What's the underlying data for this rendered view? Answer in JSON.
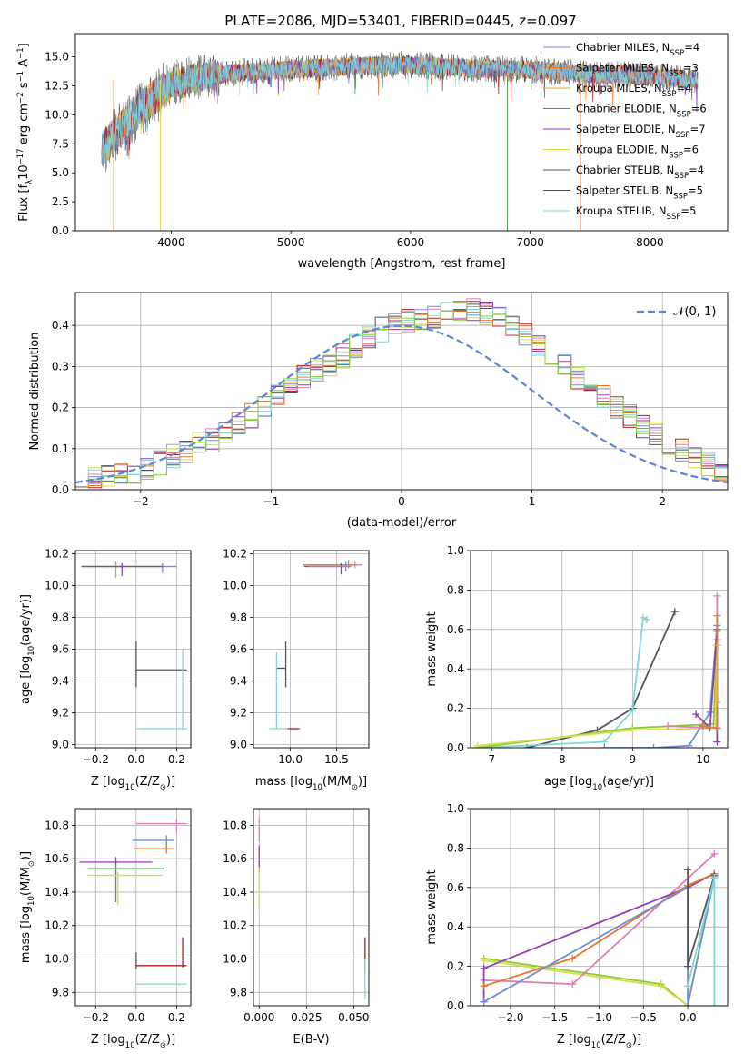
{
  "figure_title": "PLATE=2086, MJD=53401, FIBERID=0445, z=0.097",
  "colors": {
    "Chabrier MILES": "#6f8fd8",
    "Salpeter MILES": "#e8762d",
    "Kroupa MILES": "#f0a030",
    "Chabrier ELODIE": "#4e9a52",
    "Salpeter ELODIE": "#8e3fb0",
    "Kroupa ELODIE": "#d6dc4a",
    "Chabrier STELIB": "#555555",
    "Salpeter STELIB": "#b01e26",
    "Kroupa STELIB": "#7fd6d8",
    "pink": "#e07fb8",
    "lime": "#8acb2f",
    "normal": "#5b87d6"
  },
  "chart_data": [
    {
      "id": "spectrum",
      "type": "line",
      "title": "PLATE=2086, MJD=53401, FIBERID=0445, z=0.097",
      "xlabel": "wavelength [Angstrom, rest frame]",
      "ylabel_main": "Flux [f",
      "ylabel_sub": "λ",
      "ylabel_rest": "10",
      "ylabel_exp1": "−17",
      "ylabel_mid": " erg cm",
      "ylabel_exp2": "−2",
      "ylabel_mid2": " s",
      "ylabel_exp3": "−1",
      "ylabel_mid3": " A",
      "ylabel_exp4": "−1",
      "ylabel_end": "]",
      "xlim": [
        3200,
        8650
      ],
      "ylim": [
        0,
        17
      ],
      "xticks": [
        4000,
        5000,
        6000,
        7000,
        8000
      ],
      "yticks": [
        0.0,
        2.5,
        5.0,
        7.5,
        10.0,
        12.5,
        15.0
      ],
      "ytick_labels": [
        "0.0",
        "2.5",
        "5.0",
        "7.5",
        "10.0",
        "12.5",
        "15.0"
      ],
      "legend": [
        {
          "name": "Chabrier MILES",
          "nssp": "4"
        },
        {
          "name": "Salpeter MILES",
          "nssp": "3"
        },
        {
          "name": "Kroupa MILES",
          "nssp": "4"
        },
        {
          "name": "Chabrier ELODIE",
          "nssp": "6"
        },
        {
          "name": "Salpeter ELODIE",
          "nssp": "7"
        },
        {
          "name": "Kroupa ELODIE",
          "nssp": "6"
        },
        {
          "name": "Chabrier STELIB",
          "nssp": "4"
        },
        {
          "name": "Salpeter STELIB",
          "nssp": "5"
        },
        {
          "name": "Kroupa STELIB",
          "nssp": "5"
        }
      ],
      "legend_label_prefix": ", N",
      "legend_label_sub": "SSP",
      "legend_placement": "right",
      "grid": false,
      "continuum": {
        "x": [
          3400,
          3600,
          3800,
          4000,
          4200,
          4500,
          5000,
          5500,
          6000,
          6500,
          7000,
          7500,
          8000,
          8400
        ],
        "y": [
          6.8,
          9.0,
          11.0,
          12.7,
          13.2,
          13.6,
          13.9,
          14.2,
          14.3,
          14.0,
          13.9,
          13.5,
          13.4,
          13.0
        ]
      },
      "dropouts": [
        {
          "x": 3520,
          "series": "Salpeter MILES"
        },
        {
          "x": 3910,
          "series": "Kroupa ELODIE"
        },
        {
          "x": 6810,
          "series": "Chabrier ELODIE"
        },
        {
          "x": 7420,
          "series": "Salpeter MILES"
        }
      ]
    },
    {
      "id": "residuals",
      "type": "histogram",
      "xlabel": "(data-model)/error",
      "ylabel": "Normed distribution",
      "xlim": [
        -2.5,
        2.5
      ],
      "ylim": [
        0,
        0.48
      ],
      "xticks": [
        -2,
        -1,
        0,
        1,
        2
      ],
      "xtick_labels": [
        "−2",
        "−1",
        "0",
        "1",
        "2"
      ],
      "yticks": [
        0.0,
        0.1,
        0.2,
        0.3,
        0.4
      ],
      "ytick_labels": [
        "0.0",
        "0.1",
        "0.2",
        "0.3",
        "0.4"
      ],
      "grid": true,
      "legend": "𝒩(0, 1)",
      "legend_placement": "top-right",
      "bin_width": 0.1,
      "bins_from": -2.5,
      "base_counts": [
        0.02,
        0.025,
        0.03,
        0.035,
        0.045,
        0.055,
        0.065,
        0.08,
        0.095,
        0.11,
        0.12,
        0.14,
        0.16,
        0.18,
        0.205,
        0.23,
        0.255,
        0.275,
        0.29,
        0.305,
        0.325,
        0.35,
        0.37,
        0.39,
        0.4,
        0.41,
        0.415,
        0.42,
        0.43,
        0.44,
        0.44,
        0.43,
        0.42,
        0.4,
        0.38,
        0.355,
        0.33,
        0.3,
        0.275,
        0.25,
        0.225,
        0.2,
        0.18,
        0.155,
        0.135,
        0.115,
        0.095,
        0.075,
        0.06,
        0.045
      ]
    },
    {
      "id": "age_vs_z",
      "type": "errorbar",
      "xlabel_main": "Z [log",
      "xlabel_sub": "10",
      "xlabel_end": "(Z/Z",
      "xlabel_sun": "⊙",
      "xlabel_close": ")]",
      "ylabel_main": "age  [log",
      "ylabel_sub": "10",
      "ylabel_end": "(age/yr)]",
      "xlim": [
        -0.3,
        0.27
      ],
      "ylim": [
        8.98,
        10.22
      ],
      "xticks": [
        -0.2,
        0.0,
        0.2
      ],
      "xtick_labels": [
        "−0.2",
        "0.0",
        "0.2"
      ],
      "yticks": [
        9.0,
        9.2,
        9.4,
        9.6,
        9.8,
        10.0,
        10.2
      ],
      "ytick_labels": [
        "9.0",
        "9.2",
        "9.4",
        "9.6",
        "9.8",
        "10.0",
        "10.2"
      ],
      "grid": true,
      "points": [
        {
          "x": 0.13,
          "xerr": [
            0.4,
            0.07
          ],
          "y": 10.12,
          "yerr": [
            0.01,
            0.02
          ],
          "c": "pink"
        },
        {
          "x": 0.13,
          "xerr": [
            0.4,
            0.07
          ],
          "y": 10.12,
          "yerr": [
            0.04,
            0.02
          ],
          "c": "Chabrier MILES"
        },
        {
          "x": -0.1,
          "xerr": [
            0.17,
            0.23
          ],
          "y": 10.12,
          "yerr": [
            0.07,
            0.03
          ],
          "c": "lime"
        },
        {
          "x": -0.07,
          "xerr": [
            0.2,
            0.2
          ],
          "y": 10.12,
          "yerr": [
            0.06,
            0.02
          ],
          "c": "Salpeter ELODIE"
        },
        {
          "x": 0.0,
          "xerr": [
            0.0,
            0.25
          ],
          "y": 9.47,
          "yerr": [
            0.11,
            0.18
          ],
          "c": "Chabrier STELIB"
        },
        {
          "x": 0.23,
          "xerr": [
            0.23,
            0.02
          ],
          "y": 9.1,
          "yerr": [
            0.01,
            0.5
          ],
          "c": "Kroupa STELIB"
        }
      ]
    },
    {
      "id": "age_vs_mass",
      "type": "errorbar",
      "xlabel_main": "mass [log",
      "xlabel_sub": "10",
      "xlabel_end": "(M/M",
      "xlabel_sun": "⊙",
      "xlabel_close": ")]",
      "xlim": [
        9.6,
        10.85
      ],
      "ylim": [
        8.98,
        10.22
      ],
      "xticks": [
        10.0,
        10.5
      ],
      "xtick_labels": [
        "10.0",
        "10.5"
      ],
      "yticks": [
        9.0,
        9.2,
        9.4,
        9.6,
        9.8,
        10.0,
        10.2
      ],
      "ytick_labels": [
        "9.0",
        "9.2",
        "9.4",
        "9.6",
        "9.8",
        "10.0",
        "10.2"
      ],
      "grid": true,
      "points": [
        {
          "x": 10.7,
          "xerr": [
            0.55,
            0.08
          ],
          "y": 10.13,
          "yerr": [
            0.02,
            0.02
          ],
          "c": "pink"
        },
        {
          "x": 10.63,
          "xerr": [
            0.5,
            0.1
          ],
          "y": 10.13,
          "yerr": [
            0.02,
            0.03
          ],
          "c": "Salpeter MILES"
        },
        {
          "x": 10.55,
          "xerr": [
            0.4,
            0.06
          ],
          "y": 10.12,
          "yerr": [
            0.05,
            0.02
          ],
          "c": "Salpeter ELODIE"
        },
        {
          "x": 10.6,
          "xerr": [
            0.4,
            0.06
          ],
          "y": 10.12,
          "yerr": [
            0.03,
            0.03
          ],
          "c": "Chabrier MILES"
        },
        {
          "x": 9.96,
          "xerr": [
            0.0,
            0.14
          ],
          "y": 9.1,
          "yerr": [
            0.0,
            0.0
          ],
          "c": "Salpeter STELIB"
        },
        {
          "x": 9.95,
          "xerr": [
            0.1,
            0.0
          ],
          "y": 9.48,
          "yerr": [
            0.12,
            0.17
          ],
          "c": "Chabrier STELIB"
        },
        {
          "x": 9.85,
          "xerr": [
            0.08,
            0.12
          ],
          "y": 9.1,
          "yerr": [
            0.0,
            0.48
          ],
          "c": "Kroupa STELIB"
        }
      ]
    },
    {
      "id": "weight_vs_age",
      "type": "line",
      "xlabel_main": "age  [log",
      "xlabel_sub": "10",
      "xlabel_end": "(age/yr)]",
      "ylabel": "mass weight",
      "xlim": [
        6.7,
        10.35
      ],
      "ylim": [
        0,
        1
      ],
      "xticks": [
        7,
        8,
        9,
        10
      ],
      "xtick_labels": [
        "7",
        "8",
        "9",
        "10"
      ],
      "yticks": [
        0.0,
        0.2,
        0.4,
        0.6,
        0.8,
        1.0
      ],
      "ytick_labels": [
        "0.0",
        "0.2",
        "0.4",
        "0.6",
        "0.8",
        "1.0"
      ],
      "grid": true,
      "series": [
        {
          "c": "Chabrier STELIB",
          "x": [
            7.5,
            8.5,
            9.0,
            9.6
          ],
          "y": [
            0.0,
            0.09,
            0.2,
            0.69
          ]
        },
        {
          "c": "Kroupa STELIB",
          "x": [
            6.8,
            8.6,
            9.0,
            9.15,
            9.2
          ],
          "y": [
            0.0,
            0.03,
            0.19,
            0.66,
            0.65
          ]
        },
        {
          "c": "lime",
          "x": [
            6.8,
            9.0,
            10.15,
            10.2
          ],
          "y": [
            0.0,
            0.1,
            0.12,
            0.59
          ]
        },
        {
          "c": "Kroupa ELODIE",
          "x": [
            6.8,
            9.0,
            10.18,
            10.2
          ],
          "y": [
            0.01,
            0.09,
            0.1,
            0.55
          ]
        },
        {
          "c": "Chabrier MILES",
          "x": [
            8.6,
            9.3,
            9.8,
            10.1,
            10.2
          ],
          "y": [
            0.0,
            0.0,
            0.01,
            0.18,
            0.62
          ]
        },
        {
          "c": "Salpeter ELODIE",
          "x": [
            9.9,
            10.1,
            10.2,
            10.2
          ],
          "y": [
            0.17,
            0.1,
            0.6,
            0.03
          ]
        },
        {
          "c": "pink",
          "x": [
            9.5,
            10.2,
            10.2
          ],
          "y": [
            0.11,
            0.1,
            0.77
          ]
        },
        {
          "c": "Salpeter MILES",
          "x": [
            10.0,
            10.2,
            10.2
          ],
          "y": [
            0.11,
            0.1,
            0.67
          ]
        },
        {
          "c": "Kroupa MILES",
          "x": [
            10.2,
            10.2
          ],
          "y": [
            0.23,
            0.52
          ]
        }
      ]
    },
    {
      "id": "mass_vs_z",
      "type": "errorbar",
      "xlabel_main": "Z [log",
      "xlabel_sub": "10",
      "xlabel_end": "(Z/Z",
      "xlabel_sun": "⊙",
      "xlabel_close": ")]",
      "ylabel_main": "mass [log",
      "ylabel_sub": "10",
      "ylabel_end": "(M/M",
      "ylabel_sun": "⊙",
      "ylabel_close": ")]",
      "xlim": [
        -0.3,
        0.27
      ],
      "ylim": [
        9.72,
        10.9
      ],
      "xticks": [
        -0.2,
        0.0,
        0.2
      ],
      "xtick_labels": [
        "−0.2",
        "0.0",
        "0.2"
      ],
      "yticks": [
        9.8,
        10.0,
        10.2,
        10.4,
        10.6,
        10.8
      ],
      "ytick_labels": [
        "9.8",
        "10.0",
        "10.2",
        "10.4",
        "10.6",
        "10.8"
      ],
      "grid": true,
      "points": [
        {
          "x": 0.2,
          "xerr": [
            0.2,
            0.05
          ],
          "y": 10.81,
          "yerr": [
            0.06,
            0.03
          ],
          "c": "pink"
        },
        {
          "x": 0.15,
          "xerr": [
            0.17,
            0.04
          ],
          "y": 10.71,
          "yerr": [
            0.05,
            0.03
          ],
          "c": "Chabrier MILES"
        },
        {
          "x": 0.15,
          "xerr": [
            0.16,
            0.04
          ],
          "y": 10.66,
          "yerr": [
            0.03,
            0.03
          ],
          "c": "Salpeter MILES"
        },
        {
          "x": -0.1,
          "xerr": [
            0.18,
            0.18
          ],
          "y": 10.58,
          "yerr": [
            0.02,
            0.03
          ],
          "c": "Salpeter ELODIE"
        },
        {
          "x": -0.1,
          "xerr": [
            0.14,
            0.24
          ],
          "y": 10.54,
          "yerr": [
            0.2,
            0.02
          ],
          "c": "Chabrier ELODIE"
        },
        {
          "x": -0.09,
          "xerr": [
            0.15,
            0.22
          ],
          "y": 10.5,
          "yerr": [
            0.18,
            0.02
          ],
          "c": "Kroupa ELODIE"
        },
        {
          "x": 0.0,
          "xerr": [
            0.0,
            0.23
          ],
          "y": 9.96,
          "yerr": [
            0.02,
            0.08
          ],
          "c": "Chabrier STELIB"
        },
        {
          "x": 0.23,
          "xerr": [
            0.23,
            0.02
          ],
          "y": 9.96,
          "yerr": [
            0.01,
            0.17
          ],
          "c": "Salpeter STELIB"
        },
        {
          "x": 0.0,
          "xerr": [
            0.0,
            0.25
          ],
          "y": 9.85,
          "yerr": [
            0.0,
            0.0
          ],
          "c": "Kroupa STELIB"
        }
      ]
    },
    {
      "id": "mass_vs_ebv",
      "type": "errorbar",
      "xlabel": "E(B-V)",
      "xlim": [
        -0.003,
        0.058
      ],
      "ylim": [
        9.72,
        10.9
      ],
      "xticks": [
        0.0,
        0.025,
        0.05
      ],
      "xtick_labels": [
        "0.000",
        "0.025",
        "0.050"
      ],
      "yticks": [
        9.8,
        10.0,
        10.2,
        10.4,
        10.6,
        10.8
      ],
      "ytick_labels": [
        "9.8",
        "10.0",
        "10.2",
        "10.4",
        "10.6",
        "10.8"
      ],
      "grid": true,
      "points": [
        {
          "x": 0.0,
          "xerr": [
            0,
            0
          ],
          "y": 10.8,
          "yerr": [
            0.1,
            0.05
          ],
          "c": "pink"
        },
        {
          "x": 0.0,
          "xerr": [
            0,
            0
          ],
          "y": 10.6,
          "yerr": [
            0.08,
            0.08
          ],
          "c": "Salpeter ELODIE"
        },
        {
          "x": 0.0,
          "xerr": [
            0,
            0
          ],
          "y": 10.45,
          "yerr": [
            0.15,
            0.1
          ],
          "c": "Kroupa ELODIE"
        },
        {
          "x": 0.056,
          "xerr": [
            0,
            0
          ],
          "y": 10.02,
          "yerr": [
            0.1,
            0.11
          ],
          "c": "Salpeter STELIB"
        },
        {
          "x": 0.056,
          "xerr": [
            0,
            0
          ],
          "y": 9.88,
          "yerr": [
            0.12,
            0.12
          ],
          "c": "Kroupa STELIB"
        }
      ]
    },
    {
      "id": "weight_vs_z",
      "type": "line",
      "xlabel_main": "Z [log",
      "xlabel_sub": "10",
      "xlabel_end": "(Z/Z",
      "xlabel_sun": "⊙",
      "xlabel_close": ")]",
      "ylabel": "mass weight",
      "xlim": [
        -2.45,
        0.45
      ],
      "ylim": [
        0,
        1
      ],
      "xticks": [
        -2.0,
        -1.5,
        -1.0,
        -0.5,
        0.0
      ],
      "xtick_labels": [
        "−2.0",
        "−1.5",
        "−1.0",
        "−0.5",
        "0.0"
      ],
      "yticks": [
        0.0,
        0.2,
        0.4,
        0.6,
        0.8,
        1.0
      ],
      "ytick_labels": [
        "0.0",
        "0.2",
        "0.4",
        "0.6",
        "0.8",
        "1.0"
      ],
      "grid": true,
      "series": [
        {
          "c": "lime",
          "x": [
            -2.3,
            -0.3,
            0.0,
            0.3
          ],
          "y": [
            0.24,
            0.11,
            0.0,
            0.67
          ]
        },
        {
          "c": "Kroupa ELODIE",
          "x": [
            -2.3,
            -0.3,
            0.0,
            0.3
          ],
          "y": [
            0.23,
            0.1,
            0.0,
            0.66
          ]
        },
        {
          "c": "pink",
          "x": [
            -2.3,
            -1.3,
            0.3
          ],
          "y": [
            0.13,
            0.11,
            0.77
          ]
        },
        {
          "c": "Salpeter ELODIE",
          "x": [
            -2.3,
            -2.3,
            0.0,
            0.3
          ],
          "y": [
            0.02,
            0.19,
            0.6,
            0.67
          ]
        },
        {
          "c": "Salpeter MILES",
          "x": [
            -2.3,
            -1.3,
            0.0,
            0.3
          ],
          "y": [
            0.1,
            0.24,
            0.61,
            0.67
          ]
        },
        {
          "c": "Chabrier MILES",
          "x": [
            -2.3,
            0.0,
            0.0,
            0.3
          ],
          "y": [
            0.02,
            0.6,
            0.0,
            0.65
          ]
        },
        {
          "c": "Chabrier STELIB",
          "x": [
            0.0,
            0.0,
            0.3
          ],
          "y": [
            0.69,
            0.2,
            0.66
          ]
        },
        {
          "c": "Kroupa STELIB",
          "x": [
            0.0,
            0.3,
            0.3
          ],
          "y": [
            0.1,
            0.65,
            0.0
          ]
        }
      ]
    }
  ]
}
